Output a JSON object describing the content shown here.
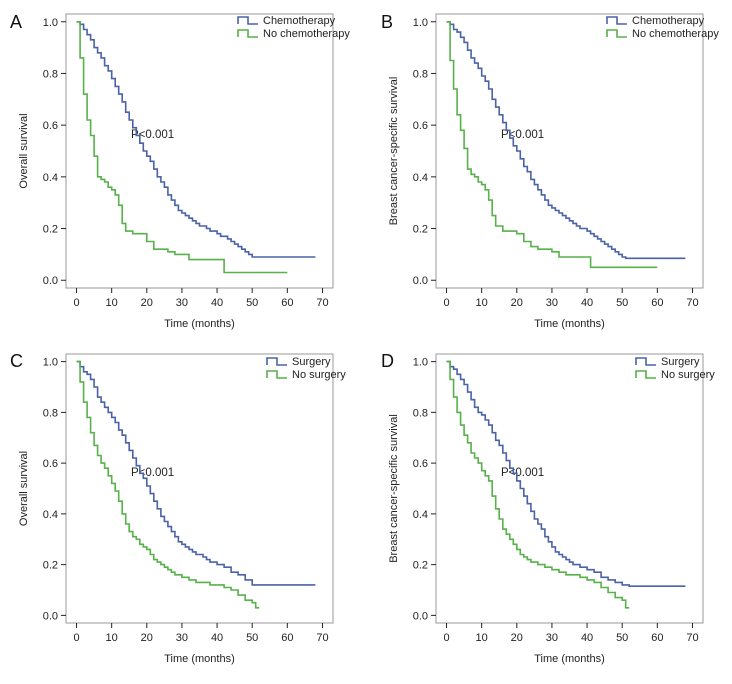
{
  "colors": {
    "series_a": "#4a62a7",
    "series_b": "#58b14a",
    "axis": "#222222",
    "frame": "#999999"
  },
  "chart_data": [
    {
      "panel": "A",
      "type": "line",
      "xlabel": "Time (months)",
      "ylabel": "Overall survival",
      "xticks": [
        0,
        10,
        20,
        30,
        40,
        50,
        60,
        70
      ],
      "yticks": [
        0.0,
        0.2,
        0.4,
        0.6,
        0.8,
        1.0
      ],
      "ytick_labels": [
        "0.0",
        "0.2",
        "0.4",
        "0.6",
        "0.8",
        "1.0"
      ],
      "xlim": [
        -3,
        73
      ],
      "ylim": [
        -0.03,
        1.03
      ],
      "annotation": "P<0.001",
      "series": [
        {
          "name": "Chemotherapy",
          "color": "#4a62a7",
          "x": [
            0,
            1,
            2,
            3,
            4,
            5,
            6,
            7,
            8,
            9,
            10,
            11,
            12,
            13,
            14,
            15,
            16,
            17,
            18,
            19,
            20,
            21,
            22,
            23,
            24,
            25,
            26,
            27,
            28,
            29,
            30,
            31,
            32,
            33,
            34,
            35,
            36,
            37,
            38,
            39,
            40,
            41,
            42,
            43,
            44,
            45,
            46,
            47,
            48,
            49,
            50,
            52,
            55,
            60,
            68
          ],
          "y": [
            1.0,
            0.99,
            0.97,
            0.95,
            0.93,
            0.9,
            0.88,
            0.86,
            0.83,
            0.81,
            0.78,
            0.75,
            0.72,
            0.69,
            0.65,
            0.62,
            0.59,
            0.56,
            0.53,
            0.5,
            0.48,
            0.46,
            0.43,
            0.4,
            0.38,
            0.36,
            0.33,
            0.31,
            0.29,
            0.27,
            0.26,
            0.25,
            0.24,
            0.23,
            0.22,
            0.21,
            0.21,
            0.2,
            0.19,
            0.19,
            0.18,
            0.17,
            0.17,
            0.16,
            0.15,
            0.14,
            0.13,
            0.12,
            0.11,
            0.1,
            0.09,
            0.09,
            0.09,
            0.09,
            0.09
          ]
        },
        {
          "name": "No chemotherapy",
          "color": "#58b14a",
          "x": [
            0,
            1,
            2,
            3,
            4,
            5,
            6,
            7,
            8,
            9,
            10,
            11,
            12,
            13,
            14,
            16,
            18,
            20,
            22,
            24,
            26,
            28,
            30,
            32,
            35,
            38,
            40,
            42,
            45,
            50,
            55,
            60
          ],
          "y": [
            1.0,
            0.86,
            0.72,
            0.62,
            0.56,
            0.48,
            0.4,
            0.39,
            0.38,
            0.36,
            0.35,
            0.33,
            0.29,
            0.22,
            0.19,
            0.18,
            0.18,
            0.15,
            0.12,
            0.12,
            0.11,
            0.1,
            0.1,
            0.08,
            0.08,
            0.08,
            0.08,
            0.03,
            0.03,
            0.03,
            0.03,
            0.03
          ]
        }
      ]
    },
    {
      "panel": "B",
      "type": "line",
      "xlabel": "Time (months)",
      "ylabel": "Breast cancer-specific survival",
      "xticks": [
        0,
        10,
        20,
        30,
        40,
        50,
        60,
        70
      ],
      "yticks": [
        0.0,
        0.2,
        0.4,
        0.6,
        0.8,
        1.0
      ],
      "ytick_labels": [
        "0.0",
        "0.2",
        "0.4",
        "0.6",
        "0.8",
        "1.0"
      ],
      "xlim": [
        -3,
        73
      ],
      "ylim": [
        -0.03,
        1.03
      ],
      "annotation": "P<0.001",
      "series": [
        {
          "name": "Chemotherapy",
          "color": "#4a62a7",
          "x": [
            0,
            1,
            2,
            3,
            4,
            5,
            6,
            7,
            8,
            9,
            10,
            11,
            12,
            13,
            14,
            15,
            16,
            17,
            18,
            19,
            20,
            21,
            22,
            23,
            24,
            25,
            26,
            27,
            28,
            29,
            30,
            31,
            32,
            33,
            34,
            35,
            36,
            37,
            38,
            39,
            40,
            41,
            42,
            43,
            44,
            45,
            46,
            47,
            48,
            49,
            50,
            51,
            52,
            55,
            60,
            68
          ],
          "y": [
            1.0,
            0.99,
            0.97,
            0.96,
            0.94,
            0.92,
            0.89,
            0.86,
            0.84,
            0.82,
            0.79,
            0.77,
            0.74,
            0.7,
            0.67,
            0.64,
            0.61,
            0.58,
            0.55,
            0.52,
            0.5,
            0.47,
            0.44,
            0.42,
            0.39,
            0.37,
            0.35,
            0.33,
            0.31,
            0.29,
            0.28,
            0.27,
            0.26,
            0.25,
            0.24,
            0.23,
            0.22,
            0.21,
            0.2,
            0.2,
            0.19,
            0.18,
            0.17,
            0.16,
            0.15,
            0.14,
            0.13,
            0.12,
            0.11,
            0.1,
            0.09,
            0.085,
            0.085,
            0.085,
            0.085,
            0.085
          ]
        },
        {
          "name": "No chemotherapy",
          "color": "#58b14a",
          "x": [
            0,
            1,
            2,
            3,
            4,
            5,
            6,
            7,
            8,
            9,
            10,
            11,
            12,
            13,
            14,
            16,
            18,
            20,
            22,
            24,
            26,
            28,
            30,
            32,
            35,
            38,
            40,
            41,
            45,
            50,
            55,
            60
          ],
          "y": [
            1.0,
            0.85,
            0.74,
            0.64,
            0.58,
            0.51,
            0.43,
            0.41,
            0.4,
            0.38,
            0.37,
            0.35,
            0.31,
            0.25,
            0.21,
            0.19,
            0.19,
            0.18,
            0.15,
            0.13,
            0.12,
            0.12,
            0.11,
            0.09,
            0.09,
            0.09,
            0.09,
            0.05,
            0.05,
            0.05,
            0.05,
            0.05
          ]
        }
      ]
    },
    {
      "panel": "C",
      "type": "line",
      "xlabel": "Time (months)",
      "ylabel": "Overall survival",
      "xticks": [
        0,
        10,
        20,
        30,
        40,
        50,
        60,
        70
      ],
      "yticks": [
        0.0,
        0.2,
        0.4,
        0.6,
        0.8,
        1.0
      ],
      "ytick_labels": [
        "0.0",
        "0.2",
        "0.4",
        "0.6",
        "0.8",
        "1.0"
      ],
      "xlim": [
        -3,
        73
      ],
      "ylim": [
        -0.03,
        1.03
      ],
      "annotation": "P<0.001",
      "series": [
        {
          "name": "Surgery",
          "color": "#4a62a7",
          "x": [
            0,
            1,
            2,
            3,
            4,
            5,
            6,
            7,
            8,
            9,
            10,
            11,
            12,
            13,
            14,
            15,
            16,
            17,
            18,
            19,
            20,
            21,
            22,
            23,
            24,
            25,
            26,
            27,
            28,
            29,
            30,
            31,
            32,
            33,
            34,
            35,
            36,
            37,
            38,
            40,
            42,
            44,
            46,
            48,
            50,
            52,
            55,
            60,
            68
          ],
          "y": [
            1.0,
            0.98,
            0.96,
            0.95,
            0.93,
            0.9,
            0.86,
            0.84,
            0.82,
            0.8,
            0.78,
            0.76,
            0.73,
            0.71,
            0.68,
            0.65,
            0.62,
            0.59,
            0.56,
            0.54,
            0.51,
            0.48,
            0.45,
            0.42,
            0.39,
            0.37,
            0.35,
            0.33,
            0.31,
            0.29,
            0.28,
            0.27,
            0.26,
            0.25,
            0.24,
            0.24,
            0.23,
            0.22,
            0.21,
            0.2,
            0.19,
            0.17,
            0.16,
            0.14,
            0.12,
            0.12,
            0.12,
            0.12,
            0.12
          ]
        },
        {
          "name": "No surgery",
          "color": "#58b14a",
          "x": [
            0,
            1,
            2,
            3,
            4,
            5,
            6,
            7,
            8,
            9,
            10,
            11,
            12,
            13,
            14,
            15,
            16,
            17,
            18,
            19,
            20,
            21,
            22,
            23,
            24,
            25,
            26,
            27,
            28,
            29,
            30,
            32,
            34,
            36,
            38,
            40,
            42,
            44,
            46,
            48,
            50,
            51,
            52
          ],
          "y": [
            1.0,
            0.92,
            0.84,
            0.78,
            0.72,
            0.67,
            0.63,
            0.6,
            0.58,
            0.55,
            0.52,
            0.49,
            0.45,
            0.4,
            0.36,
            0.33,
            0.31,
            0.3,
            0.28,
            0.27,
            0.26,
            0.24,
            0.22,
            0.21,
            0.2,
            0.19,
            0.18,
            0.17,
            0.16,
            0.16,
            0.15,
            0.14,
            0.13,
            0.13,
            0.12,
            0.12,
            0.11,
            0.1,
            0.08,
            0.06,
            0.05,
            0.03,
            0.03
          ]
        }
      ]
    },
    {
      "panel": "D",
      "type": "line",
      "xlabel": "Time (months)",
      "ylabel": "Breast cancer-specific survival",
      "xticks": [
        0,
        10,
        20,
        30,
        40,
        50,
        60,
        70
      ],
      "yticks": [
        0.0,
        0.2,
        0.4,
        0.6,
        0.8,
        1.0
      ],
      "ytick_labels": [
        "0.0",
        "0.2",
        "0.4",
        "0.6",
        "0.8",
        "1.0"
      ],
      "xlim": [
        -3,
        73
      ],
      "ylim": [
        -0.03,
        1.03
      ],
      "annotation": "P<0.001",
      "series": [
        {
          "name": "Surgery",
          "color": "#4a62a7",
          "x": [
            0,
            1,
            2,
            3,
            4,
            5,
            6,
            7,
            8,
            9,
            10,
            11,
            12,
            13,
            14,
            15,
            16,
            17,
            18,
            19,
            20,
            21,
            22,
            23,
            24,
            25,
            26,
            27,
            28,
            29,
            30,
            31,
            32,
            33,
            34,
            35,
            36,
            38,
            40,
            42,
            44,
            46,
            48,
            50,
            52,
            55,
            60,
            68
          ],
          "y": [
            1.0,
            0.98,
            0.97,
            0.95,
            0.93,
            0.91,
            0.88,
            0.85,
            0.82,
            0.8,
            0.79,
            0.77,
            0.75,
            0.72,
            0.69,
            0.67,
            0.64,
            0.61,
            0.58,
            0.56,
            0.53,
            0.5,
            0.47,
            0.44,
            0.41,
            0.38,
            0.36,
            0.34,
            0.31,
            0.29,
            0.27,
            0.25,
            0.24,
            0.23,
            0.22,
            0.21,
            0.2,
            0.19,
            0.18,
            0.17,
            0.15,
            0.14,
            0.13,
            0.12,
            0.115,
            0.115,
            0.115,
            0.115
          ]
        },
        {
          "name": "No surgery",
          "color": "#58b14a",
          "x": [
            0,
            1,
            2,
            3,
            4,
            5,
            6,
            7,
            8,
            9,
            10,
            11,
            12,
            13,
            14,
            15,
            16,
            17,
            18,
            19,
            20,
            21,
            22,
            23,
            24,
            25,
            26,
            28,
            30,
            32,
            34,
            36,
            38,
            40,
            42,
            44,
            46,
            48,
            50,
            51,
            52
          ],
          "y": [
            1.0,
            0.93,
            0.86,
            0.8,
            0.75,
            0.71,
            0.68,
            0.64,
            0.62,
            0.6,
            0.57,
            0.55,
            0.53,
            0.47,
            0.42,
            0.38,
            0.34,
            0.32,
            0.3,
            0.28,
            0.26,
            0.24,
            0.23,
            0.22,
            0.21,
            0.21,
            0.2,
            0.19,
            0.18,
            0.17,
            0.16,
            0.16,
            0.15,
            0.14,
            0.13,
            0.11,
            0.09,
            0.07,
            0.06,
            0.03,
            0.03
          ]
        }
      ]
    }
  ]
}
